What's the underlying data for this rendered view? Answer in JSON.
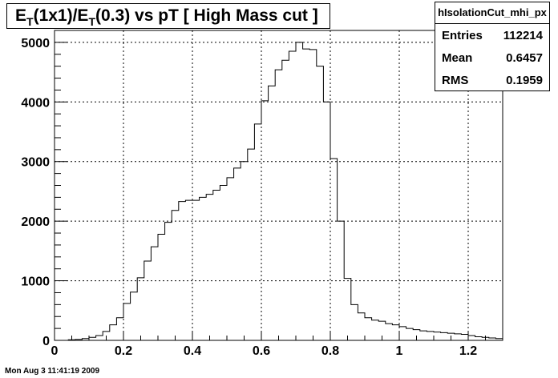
{
  "title_parts": [
    "E",
    "T",
    "(1x1)/E",
    "T",
    "(0.3) vs pT [ High Mass cut ]"
  ],
  "stats": {
    "name": "hIsolationCut_mhi_px",
    "entries_label": "Entries",
    "entries_value": "112214",
    "mean_label": "Mean",
    "mean_value": "0.6457",
    "rms_label": "RMS",
    "rms_value": "0.1959"
  },
  "timestamp": "Mon Aug  3 11:41:19 2009",
  "chart_data": {
    "type": "bar",
    "title": "E_T(1x1)/E_T(0.3) vs pT [ High Mass cut ]",
    "xlim": [
      0,
      1.3
    ],
    "ylim": [
      0,
      5200
    ],
    "bin_width": 0.02,
    "x_ticks": [
      0,
      0.2,
      0.4,
      0.6,
      0.8,
      1,
      1.2
    ],
    "x_tick_labels": [
      "0",
      "0.2",
      "0.4",
      "0.6",
      "0.8",
      "1",
      "1.2"
    ],
    "y_ticks": [
      0,
      1000,
      2000,
      3000,
      4000,
      5000
    ],
    "y_tick_labels": [
      "0",
      "1000",
      "2000",
      "3000",
      "4000",
      "5000"
    ],
    "grid": true,
    "x": [
      0.0,
      0.02,
      0.04,
      0.06,
      0.08,
      0.1,
      0.12,
      0.14,
      0.16,
      0.18,
      0.2,
      0.22,
      0.24,
      0.26,
      0.28,
      0.3,
      0.32,
      0.34,
      0.36,
      0.38,
      0.4,
      0.42,
      0.44,
      0.46,
      0.48,
      0.5,
      0.52,
      0.54,
      0.56,
      0.58,
      0.6,
      0.62,
      0.64,
      0.66,
      0.68,
      0.7,
      0.72,
      0.74,
      0.76,
      0.78,
      0.8,
      0.82,
      0.84,
      0.86,
      0.88,
      0.9,
      0.92,
      0.94,
      0.96,
      0.98,
      1.0,
      1.02,
      1.04,
      1.06,
      1.08,
      1.1,
      1.12,
      1.14,
      1.16,
      1.18,
      1.2,
      1.22,
      1.24,
      1.26,
      1.28
    ],
    "values": [
      0,
      0,
      10,
      15,
      30,
      50,
      80,
      150,
      260,
      380,
      620,
      810,
      1050,
      1330,
      1570,
      1780,
      1980,
      2180,
      2330,
      2350,
      2350,
      2400,
      2450,
      2520,
      2600,
      2730,
      2890,
      3000,
      3210,
      3630,
      4020,
      4270,
      4540,
      4700,
      4850,
      5000,
      4890,
      4880,
      4600,
      4000,
      3050,
      2000,
      1040,
      600,
      460,
      380,
      340,
      320,
      280,
      260,
      230,
      200,
      180,
      160,
      150,
      140,
      130,
      120,
      110,
      100,
      80,
      60,
      50,
      40,
      30
    ]
  }
}
